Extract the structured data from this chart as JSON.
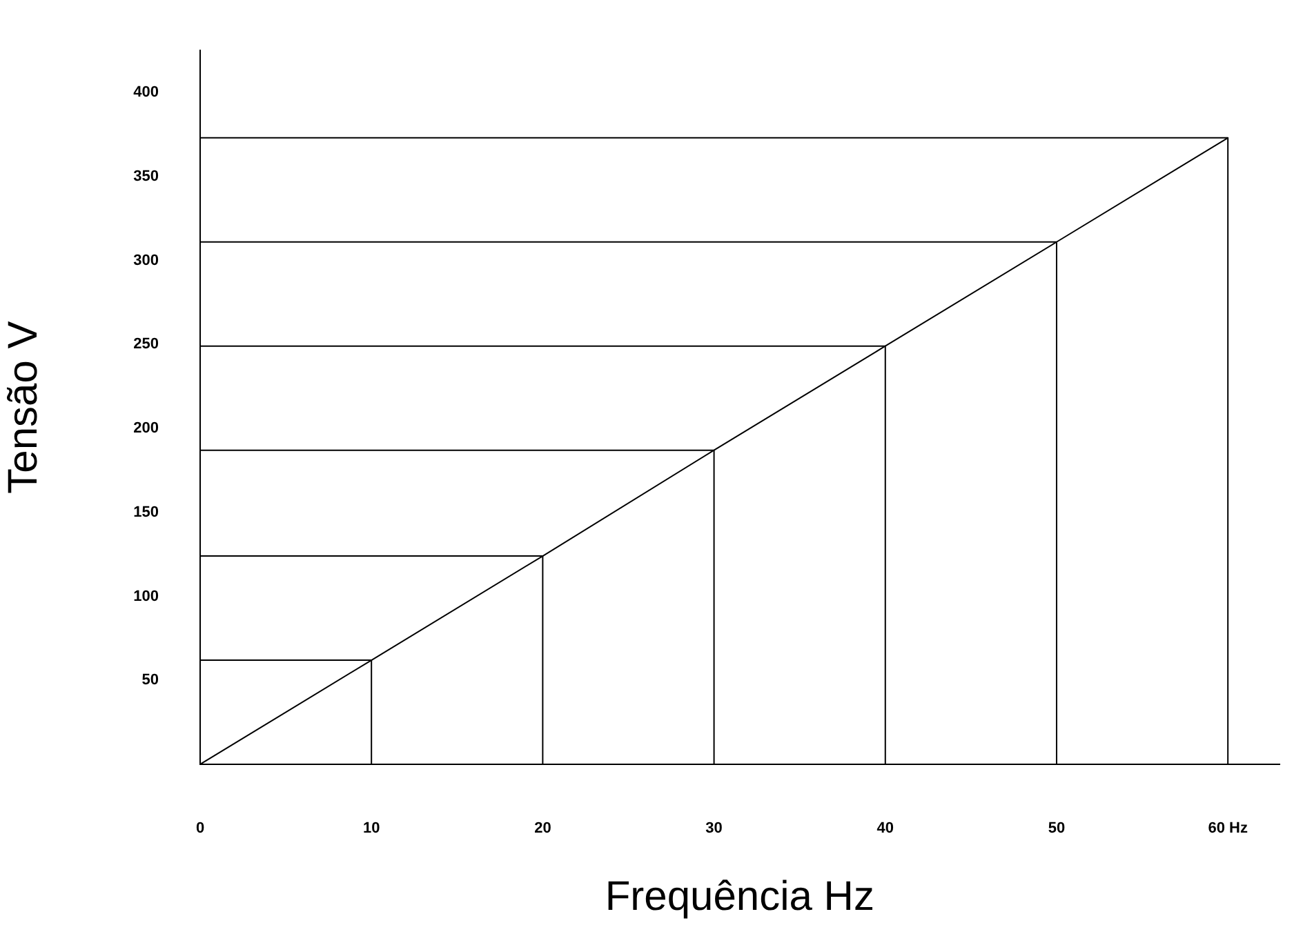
{
  "chart_data": {
    "type": "line",
    "xlabel": "Frequência Hz",
    "ylabel": "Tensão V",
    "xlim": [
      0,
      63
    ],
    "ylim": [
      0,
      425
    ],
    "xticks": [
      0,
      10,
      20,
      30,
      40,
      50,
      {
        "value": 60,
        "label": "60 Hz"
      }
    ],
    "yticks": [
      50,
      100,
      150,
      200,
      250,
      300,
      350,
      400
    ],
    "grid": false,
    "legend": false,
    "marker": "none",
    "line_style": "solid",
    "series": [
      {
        "color": "#000000",
        "x": [
          0,
          10,
          20,
          30,
          40,
          50,
          60
        ],
        "values": [
          0,
          62,
          124,
          187,
          249,
          311,
          373
        ]
      },
      {
        "color": "#000000",
        "x": [
          0,
          10,
          10
        ],
        "values": [
          62,
          62,
          0
        ]
      },
      {
        "color": "#000000",
        "x": [
          0,
          20,
          20
        ],
        "values": [
          124,
          124,
          0
        ]
      },
      {
        "color": "#000000",
        "x": [
          0,
          30,
          30
        ],
        "values": [
          187,
          187,
          0
        ]
      },
      {
        "color": "#000000",
        "x": [
          0,
          40,
          40
        ],
        "values": [
          249,
          249,
          0
        ]
      },
      {
        "color": "#000000",
        "x": [
          0,
          50,
          50
        ],
        "values": [
          311,
          311,
          0
        ]
      },
      {
        "color": "#000000",
        "x": [
          0,
          60,
          60
        ],
        "values": [
          373,
          373,
          0
        ]
      }
    ]
  }
}
